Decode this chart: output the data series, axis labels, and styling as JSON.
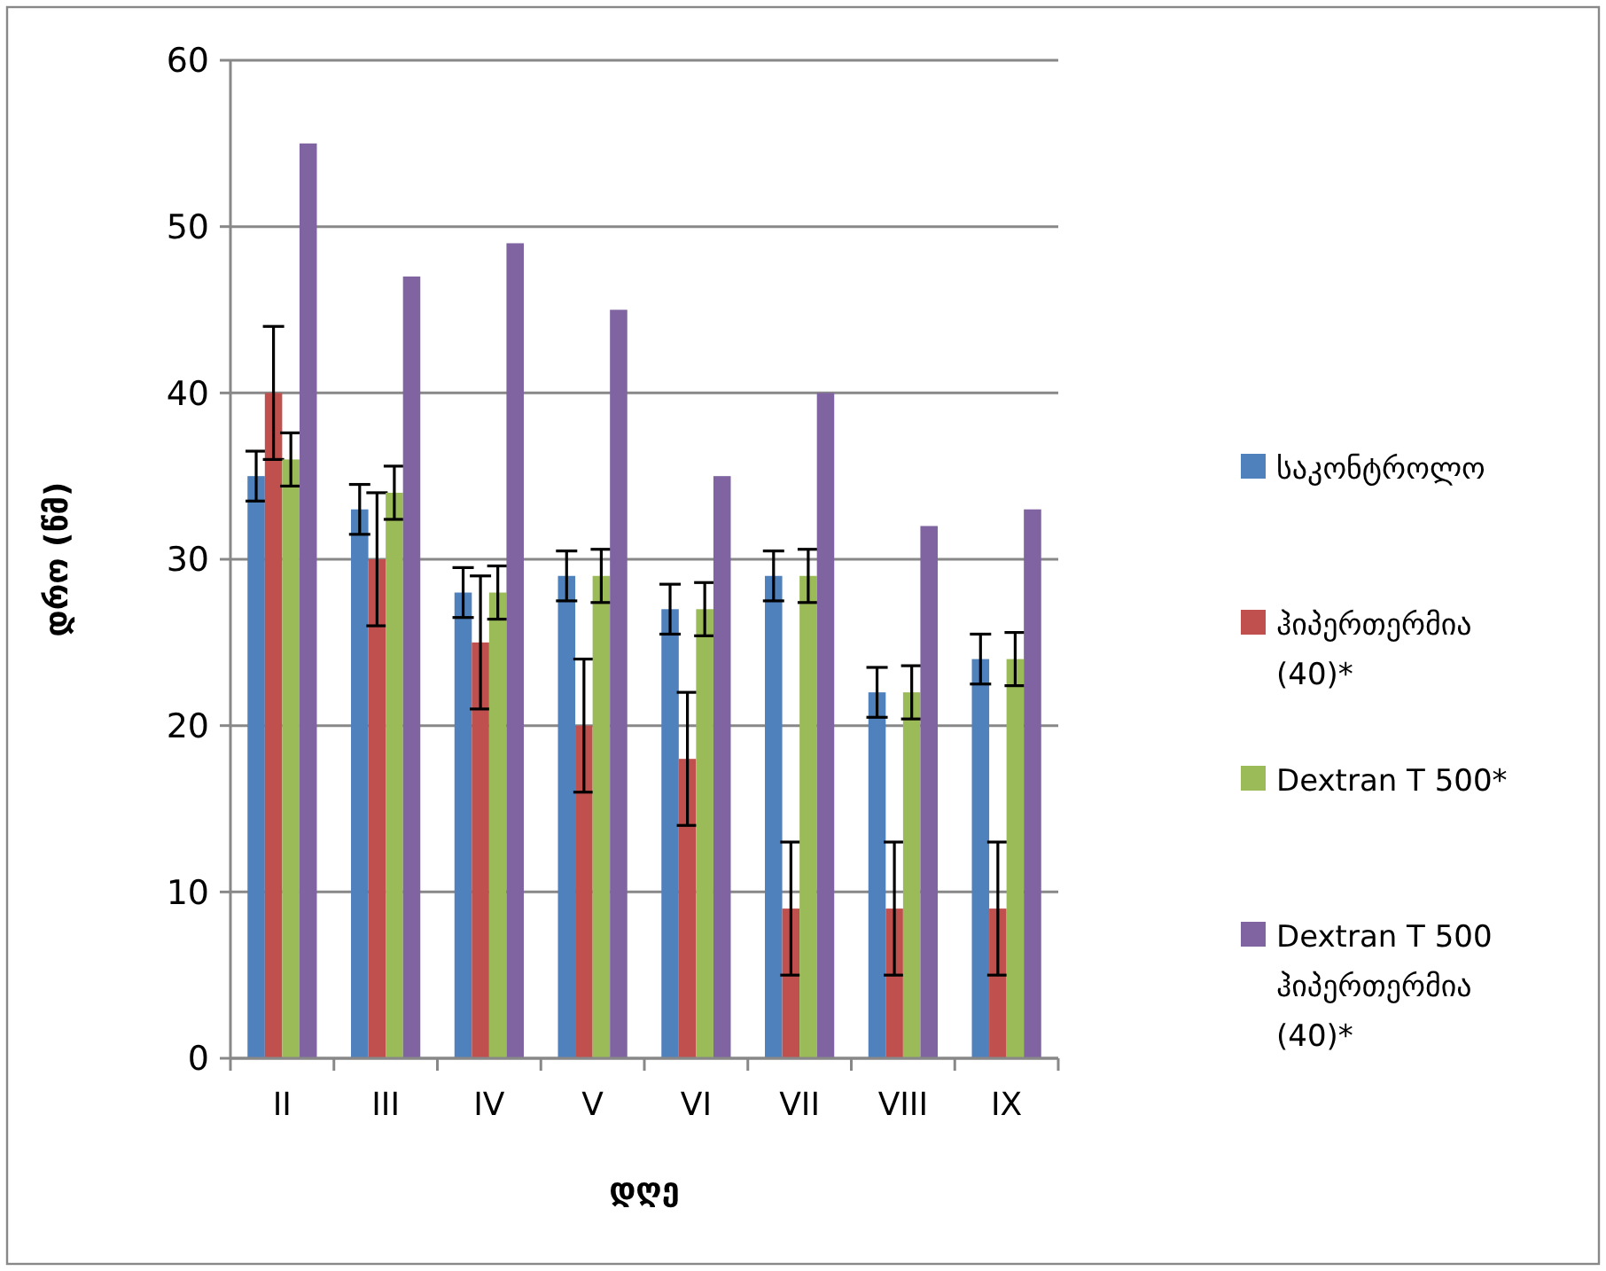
{
  "chart_data": {
    "type": "bar",
    "xlabel": "დღე",
    "ylabel": "დრო (წმ)",
    "categories": [
      "II",
      "III",
      "IV",
      "V",
      "VI",
      "VII",
      "VIII",
      "IX"
    ],
    "series": [
      {
        "name": "საკონტროლო",
        "color": "#4f81bd",
        "values": [
          35,
          33,
          28,
          29,
          27,
          29,
          22,
          24
        ],
        "errors": [
          1.5,
          1.5,
          1.5,
          1.5,
          1.5,
          1.5,
          1.5,
          1.5
        ]
      },
      {
        "name": "ჰიპერთერმია (40)*",
        "color": "#c0504d",
        "values": [
          40,
          30,
          25,
          20,
          18,
          9,
          9,
          9
        ],
        "errors": [
          4,
          4,
          4,
          4,
          4,
          4,
          4,
          4
        ]
      },
      {
        "name": "Dextran T 500*",
        "color": "#9bbb59",
        "values": [
          36,
          34,
          28,
          29,
          27,
          29,
          22,
          24
        ],
        "errors": [
          1.6,
          1.6,
          1.6,
          1.6,
          1.6,
          1.6,
          1.6,
          1.6
        ]
      },
      {
        "name": "Dextran T 500 ჰიპერთერმია (40)*",
        "color": "#8064a2",
        "values": [
          55,
          47,
          49,
          45,
          35,
          40,
          32,
          33
        ]
      }
    ],
    "ylim": [
      0,
      60
    ],
    "yticks": [
      0,
      10,
      20,
      30,
      40,
      50,
      60
    ],
    "grid": "y",
    "legend": "right"
  }
}
